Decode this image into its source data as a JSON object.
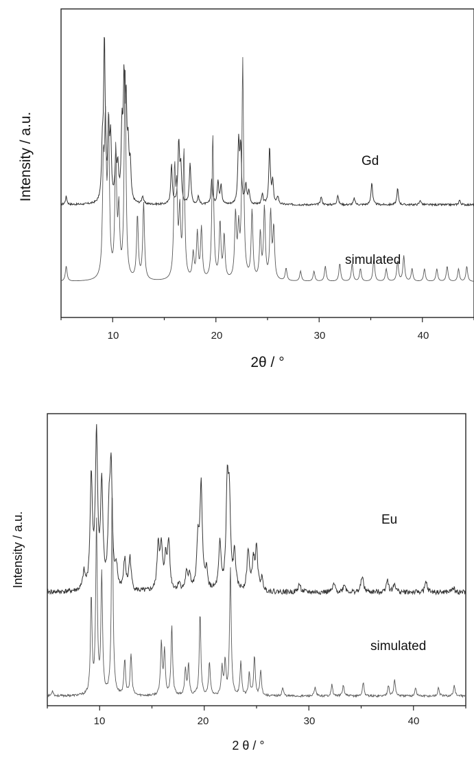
{
  "chart_data": [
    {
      "type": "line",
      "xlabel": "2θ / °",
      "ylabel": "Intensity / a.u.",
      "xlim": [
        5,
        45
      ],
      "xticks": [
        "10",
        "20",
        "30",
        "40"
      ],
      "grid": false,
      "series": [
        {
          "name": "Gd",
          "peaks": [
            [
              5.5,
              0.05
            ],
            [
              9.0,
              0.3
            ],
            [
              9.2,
              1.0
            ],
            [
              9.6,
              0.45
            ],
            [
              9.8,
              0.38
            ],
            [
              10.3,
              0.25
            ],
            [
              10.5,
              0.2
            ],
            [
              10.9,
              0.42
            ],
            [
              11.1,
              0.68
            ],
            [
              11.3,
              0.55
            ],
            [
              11.5,
              0.3
            ],
            [
              11.7,
              0.22
            ],
            [
              12.9,
              0.05
            ],
            [
              15.7,
              0.24
            ],
            [
              16.4,
              0.38
            ],
            [
              16.6,
              0.22
            ],
            [
              17.5,
              0.26
            ],
            [
              18.3,
              0.05
            ],
            [
              19.6,
              0.16
            ],
            [
              20.2,
              0.14
            ],
            [
              20.5,
              0.12
            ],
            [
              22.2,
              0.38
            ],
            [
              22.4,
              0.34
            ],
            [
              22.9,
              0.12
            ],
            [
              23.2,
              0.08
            ],
            [
              24.5,
              0.06
            ],
            [
              25.2,
              0.35
            ],
            [
              25.5,
              0.14
            ],
            [
              26.0,
              0.05
            ],
            [
              30.2,
              0.05
            ],
            [
              31.8,
              0.06
            ],
            [
              33.4,
              0.04
            ],
            [
              35.1,
              0.14
            ],
            [
              37.6,
              0.1
            ],
            [
              39.8,
              0.03
            ],
            [
              43.6,
              0.03
            ]
          ],
          "labels": []
        },
        {
          "name": "simulated",
          "peaks": [
            [
              5.5,
              0.06
            ],
            [
              9.1,
              0.4
            ],
            [
              9.3,
              0.55
            ],
            [
              9.6,
              0.6
            ],
            [
              10.3,
              0.5
            ],
            [
              10.6,
              0.25
            ],
            [
              11.2,
              0.85
            ],
            [
              12.4,
              0.25
            ],
            [
              13.0,
              0.3
            ],
            [
              16.0,
              0.4
            ],
            [
              16.2,
              0.3
            ],
            [
              16.5,
              0.25
            ],
            [
              16.9,
              0.5
            ],
            [
              17.8,
              0.1
            ],
            [
              18.2,
              0.18
            ],
            [
              18.6,
              0.2
            ],
            [
              19.7,
              0.57
            ],
            [
              20.4,
              0.22
            ],
            [
              20.8,
              0.17
            ],
            [
              21.9,
              0.25
            ],
            [
              22.2,
              0.18
            ],
            [
              22.6,
              0.86
            ],
            [
              23.5,
              0.27
            ],
            [
              24.3,
              0.18
            ],
            [
              24.7,
              0.28
            ],
            [
              25.3,
              0.26
            ],
            [
              25.6,
              0.2
            ],
            [
              26.8,
              0.05
            ],
            [
              28.2,
              0.04
            ],
            [
              29.5,
              0.04
            ],
            [
              30.6,
              0.06
            ],
            [
              32.0,
              0.07
            ],
            [
              33.2,
              0.07
            ],
            [
              34.0,
              0.05
            ],
            [
              35.3,
              0.09
            ],
            [
              36.5,
              0.05
            ],
            [
              37.6,
              0.08
            ],
            [
              38.2,
              0.1
            ],
            [
              39.0,
              0.05
            ],
            [
              40.2,
              0.05
            ],
            [
              41.4,
              0.05
            ],
            [
              42.4,
              0.06
            ],
            [
              43.5,
              0.05
            ],
            [
              44.3,
              0.06
            ]
          ],
          "labels": []
        }
      ],
      "series_labels": [
        "Gd",
        "simulated"
      ]
    },
    {
      "type": "line",
      "xlabel": "2 θ / °",
      "ylabel": "Intensity / a.u.",
      "xlim": [
        5,
        45
      ],
      "xticks": [
        "10",
        "20",
        "30",
        "40"
      ],
      "grid": false,
      "series": [
        {
          "name": "Eu",
          "peaks": [
            [
              8.5,
              0.1
            ],
            [
              9.2,
              0.68
            ],
            [
              9.7,
              0.92
            ],
            [
              10.2,
              0.62
            ],
            [
              10.9,
              0.4
            ],
            [
              11.1,
              0.7
            ],
            [
              11.6,
              0.12
            ],
            [
              12.4,
              0.18
            ],
            [
              12.9,
              0.2
            ],
            [
              15.6,
              0.28
            ],
            [
              15.9,
              0.25
            ],
            [
              16.3,
              0.18
            ],
            [
              16.6,
              0.3
            ],
            [
              17.6,
              0.05
            ],
            [
              18.3,
              0.1
            ],
            [
              18.6,
              0.1
            ],
            [
              19.4,
              0.3
            ],
            [
              19.7,
              0.63
            ],
            [
              20.2,
              0.12
            ],
            [
              21.5,
              0.28
            ],
            [
              22.2,
              0.6
            ],
            [
              22.4,
              0.5
            ],
            [
              22.9,
              0.22
            ],
            [
              24.2,
              0.25
            ],
            [
              24.7,
              0.18
            ],
            [
              25.0,
              0.25
            ],
            [
              25.5,
              0.07
            ],
            [
              29.1,
              0.05
            ],
            [
              32.4,
              0.05
            ],
            [
              33.4,
              0.05
            ],
            [
              35.1,
              0.1
            ],
            [
              37.5,
              0.08
            ],
            [
              38.2,
              0.05
            ],
            [
              41.2,
              0.06
            ],
            [
              43.8,
              0.03
            ]
          ],
          "labels": []
        },
        {
          "name": "simulated",
          "peaks": [
            [
              5.5,
              0.02
            ],
            [
              9.2,
              0.35
            ],
            [
              9.7,
              0.62
            ],
            [
              10.2,
              0.43
            ],
            [
              11.2,
              0.75
            ],
            [
              12.4,
              0.13
            ],
            [
              13.0,
              0.15
            ],
            [
              15.9,
              0.19
            ],
            [
              16.2,
              0.16
            ],
            [
              16.9,
              0.25
            ],
            [
              18.2,
              0.09
            ],
            [
              18.5,
              0.11
            ],
            [
              19.6,
              0.3
            ],
            [
              20.5,
              0.12
            ],
            [
              21.7,
              0.1
            ],
            [
              22.0,
              0.12
            ],
            [
              22.5,
              0.46
            ],
            [
              23.5,
              0.12
            ],
            [
              24.3,
              0.08
            ],
            [
              24.8,
              0.14
            ],
            [
              25.4,
              0.09
            ],
            [
              27.5,
              0.03
            ],
            [
              30.6,
              0.03
            ],
            [
              32.2,
              0.04
            ],
            [
              33.3,
              0.04
            ],
            [
              35.2,
              0.05
            ],
            [
              37.6,
              0.04
            ],
            [
              38.2,
              0.06
            ],
            [
              40.2,
              0.03
            ],
            [
              42.4,
              0.03
            ],
            [
              43.9,
              0.04
            ]
          ],
          "labels": []
        }
      ],
      "series_labels": [
        "Eu",
        "simulated"
      ]
    }
  ]
}
